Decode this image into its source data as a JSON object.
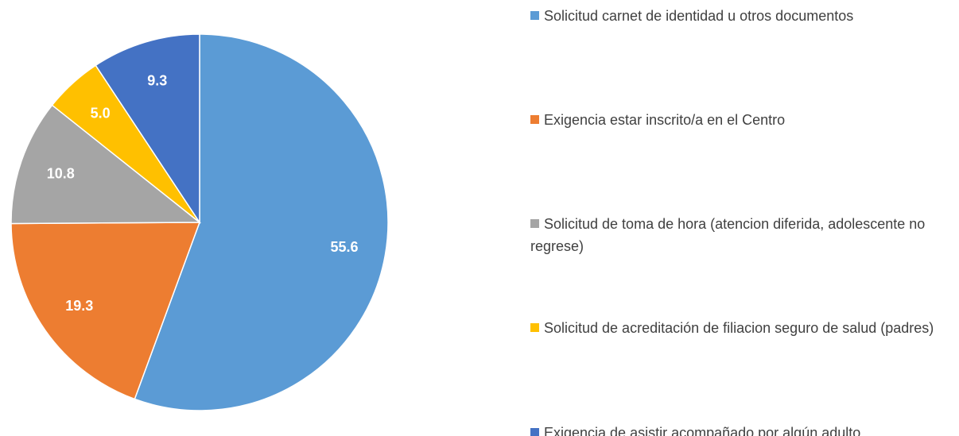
{
  "chart_data": {
    "type": "pie",
    "categories": [
      "Solicitud carnet de identidad u otros documentos",
      "Exigencia estar inscrito/a en el Centro",
      "Solicitud de toma de hora (atencion diferida, adolescente no regrese)",
      "Solicitud de acreditación de filiacion seguro de salud (padres)",
      "Exigencia de asistir acompañado por algún adulto"
    ],
    "values": [
      55.6,
      19.3,
      10.8,
      5.0,
      9.3
    ],
    "value_labels": [
      "55.6",
      "19.3",
      "10.8",
      "5.0",
      "9.3"
    ],
    "colors": [
      "#5b9bd5",
      "#ed7d31",
      "#a5a5a5",
      "#ffc000",
      "#4472c4"
    ],
    "legend": "right"
  }
}
